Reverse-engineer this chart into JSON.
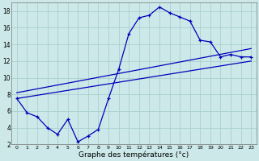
{
  "title": "Graphe des températures (°c)",
  "bg_color": "#cce8e8",
  "grid_color": "#aacfcf",
  "line_color": "#0000bb",
  "x_hours": [
    0,
    1,
    2,
    3,
    4,
    5,
    6,
    7,
    8,
    9,
    10,
    11,
    12,
    13,
    14,
    15,
    16,
    17,
    18,
    19,
    20,
    21,
    22,
    23
  ],
  "temp_curve": [
    7.5,
    5.8,
    5.3,
    4.0,
    3.2,
    5.0,
    2.3,
    3.0,
    3.8,
    7.5,
    11.0,
    15.3,
    17.2,
    17.5,
    18.5,
    17.8,
    17.3,
    16.8,
    14.5,
    14.3,
    12.5,
    12.8,
    12.5,
    12.5
  ],
  "diag_line1": [
    [
      0,
      7.5
    ],
    [
      23,
      12.0
    ]
  ],
  "diag_line2": [
    [
      0,
      8.2
    ],
    [
      23,
      13.5
    ]
  ],
  "ylim": [
    2,
    19
  ],
  "xlim": [
    -0.5,
    23.5
  ],
  "yticks": [
    2,
    4,
    6,
    8,
    10,
    12,
    14,
    16,
    18
  ],
  "xticks": [
    0,
    1,
    2,
    3,
    4,
    5,
    6,
    7,
    8,
    9,
    10,
    11,
    12,
    13,
    14,
    15,
    16,
    17,
    18,
    19,
    20,
    21,
    22,
    23
  ]
}
